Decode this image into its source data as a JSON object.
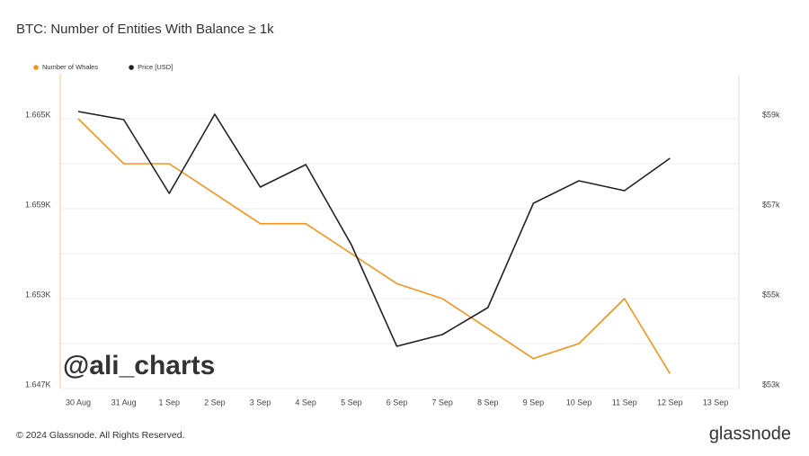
{
  "chart_data": {
    "type": "line",
    "title": "BTC: Number of Entities With Balance ≥ 1k",
    "watermark": "@ali_charts",
    "footer": "© 2024 Glassnode. All Rights Reserved.",
    "brand": "glassnode",
    "categories": [
      "30 Aug",
      "31 Aug",
      "1 Sep",
      "2 Sep",
      "3 Sep",
      "4 Sep",
      "5 Sep",
      "6 Sep",
      "7 Sep",
      "8 Sep",
      "9 Sep",
      "10 Sep",
      "11 Sep",
      "12 Sep",
      "13 Sep"
    ],
    "series": [
      {
        "name": "Number of Whales",
        "color": "#f7931a",
        "axis": "y",
        "values": [
          1665,
          1662,
          1662,
          1660,
          1658,
          1658,
          1656,
          1654,
          1653,
          1651,
          1649,
          1650,
          1653,
          1648,
          null
        ]
      },
      {
        "name": "Price [USD]",
        "color": "#222222",
        "axis": "y2",
        "values": [
          59160,
          58980,
          57340,
          59100,
          57480,
          57980,
          56200,
          53940,
          54200,
          54800,
          57120,
          57620,
          57400,
          58120,
          null
        ]
      }
    ],
    "ylim": [
      1647,
      1668
    ],
    "yticks": [
      {
        "value": 1647,
        "label": "1.647K"
      },
      {
        "value": 1653,
        "label": "1.653K"
      },
      {
        "value": 1659,
        "label": "1.659K"
      },
      {
        "value": 1665,
        "label": "1.665K"
      }
    ],
    "minor_yticks": [
      1650,
      1656,
      1662
    ],
    "y2lim": [
      53000,
      60000
    ],
    "y2ticks": [
      {
        "value": 53000,
        "label": "$53k"
      },
      {
        "value": 55000,
        "label": "$55k"
      },
      {
        "value": 57000,
        "label": "$57k"
      },
      {
        "value": 59000,
        "label": "$59k"
      }
    ],
    "grid": true
  }
}
